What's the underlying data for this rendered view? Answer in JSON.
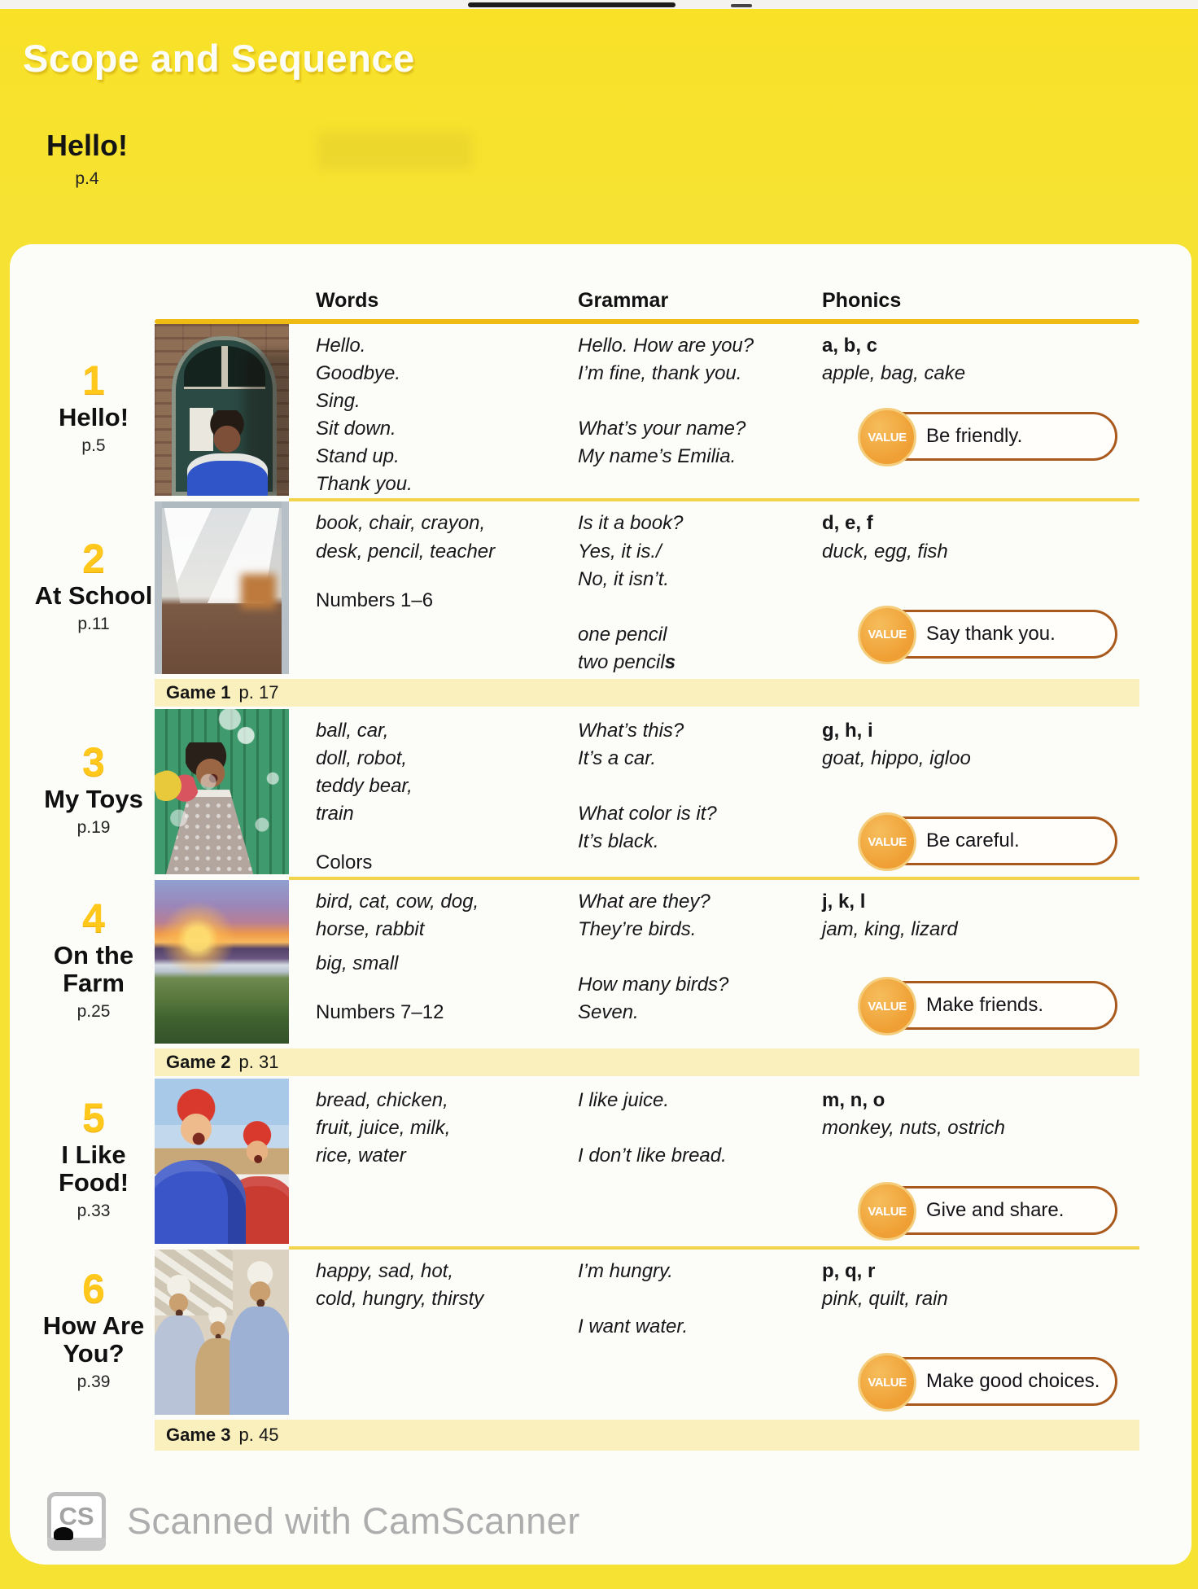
{
  "page": {
    "title": "Scope and Sequence",
    "intro": {
      "title": "Hello!",
      "page": "p.4"
    },
    "columns": {
      "words": "Words",
      "grammar": "Grammar",
      "phonics": "Phonics"
    },
    "value_label": "VALUE"
  },
  "units": [
    {
      "number": "1",
      "title": "Hello!",
      "page": "p.5",
      "photo": "child in blue shirt in front of an arched school door",
      "words1": "Hello.\nGoodbye.\nSing.\nSit down.\nStand up.\nThank you.",
      "grammar1": "Hello. How are you?\nI’m fine, thank you.",
      "grammar2": "What’s your name?\nMy name’s Emilia.",
      "phonics_letters": "a, b, c",
      "phonics_words": "apple, bag, cake",
      "value": "Be friendly."
    },
    {
      "number": "2",
      "title": "At School",
      "page": "p.11",
      "photo": "classroom interior with white drapes",
      "words1": "book, chair, crayon,\ndesk, pencil, teacher",
      "words2": "Numbers 1–6",
      "grammar1": "Is it a book?\nYes, it is./\nNo, it isn’t.",
      "grammar2": "one pencil\ntwo pencil",
      "grammar2_bold": "s",
      "phonics_letters": "d, e, f",
      "phonics_words": "duck, egg, fish",
      "value": "Say thank you."
    },
    {
      "number": "3",
      "title": "My Toys",
      "page": "p.19",
      "photo": "girl blowing bubbles by a green picket fence",
      "words1": "ball, car,\ndoll, robot,\nteddy bear,\ntrain",
      "words2": "Colors",
      "grammar1": "What’s this?\nIt’s a car.",
      "grammar2": "What color is it?\nIt’s black.",
      "phonics_letters": "g, h, i",
      "phonics_words": "goat, hippo, igloo",
      "value": "Be careful."
    },
    {
      "number": "4",
      "title": "On the Farm",
      "page": "p.25",
      "photo": "sunset over farm hills",
      "words1": "bird, cat, cow, dog,\nhorse, rabbit",
      "words_mid": "big, small",
      "words2": "Numbers 7–12",
      "grammar1": "What are they?\nThey’re birds.",
      "grammar2": "How many birds?\nSeven.",
      "phonics_letters": "j, k, l",
      "phonics_words": "jam, king, lizard",
      "value": "Make friends."
    },
    {
      "number": "5",
      "title": "I Like Food!",
      "page": "p.33",
      "photo": "two laughing children in winter jackets",
      "words1": "bread, chicken,\nfruit, juice, milk,\nrice, water",
      "grammar1": "I like juice.",
      "grammar2": "I don’t like bread.",
      "phonics_letters": "m, n, o",
      "phonics_words": "monkey, nuts, ostrich",
      "value": "Give and share."
    },
    {
      "number": "6",
      "title": "How Are You?",
      "page": "p.39",
      "photo": "three boys in embroidered caps laughing",
      "words1": "happy, sad, hot,\ncold, hungry, thirsty",
      "grammar1": "I’m hungry.",
      "grammar2": "I want water.",
      "phonics_letters": "p, q, r",
      "phonics_words": "pink, quilt, rain",
      "value": "Make good choices."
    }
  ],
  "games": [
    {
      "label": "Game 1",
      "page": "p. 17"
    },
    {
      "label": "Game 2",
      "page": "p. 31"
    },
    {
      "label": "Game 3",
      "page": "p. 45"
    }
  ],
  "footer": {
    "logo": "CS",
    "text": "Scanned with CamScanner"
  },
  "colors": {
    "page_yellow": "#f6e233",
    "gold_rule": "#efbb13",
    "game_strip": "#faf0be",
    "unit_number": "#ffc81a",
    "value_orange": "#ef9f33",
    "pill_border": "#a9591b"
  }
}
